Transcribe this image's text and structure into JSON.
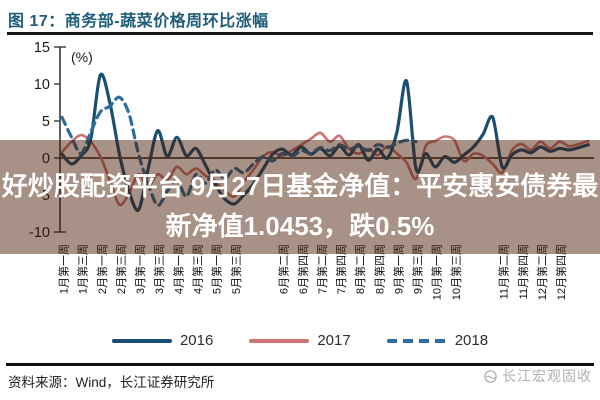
{
  "title": "图 17：商务部-蔬菜价格周环比涨幅",
  "overlay_banner": {
    "line1": "好炒股配资平台 9月27日基金净值：平安惠安债券最",
    "line2": "新净值1.0453，跌0.5%"
  },
  "footer": {
    "source": "资料来源：Wind，长江证券研究所",
    "watermark": "长江宏观固收"
  },
  "colors": {
    "title": "#1f5c78",
    "banner_tint": "rgba(70,23,0,0.47)",
    "banner_text": "#ffffff",
    "axis": "#3a3a3a",
    "zero_line": "#4a3c30",
    "tick_text": "#1a1a1a",
    "watermark": "#b3b0ad"
  },
  "chart_data": {
    "type": "line",
    "title": "商务部-蔬菜价格周环比涨幅",
    "unit_label": "(%)",
    "ylabel": "%",
    "ylim": [
      -10,
      15
    ],
    "yticks": [
      15,
      10,
      5,
      0,
      -5,
      -10
    ],
    "grid": false,
    "legend_position": "bottom",
    "legend": [
      "2016",
      "2017",
      "2018"
    ],
    "x_axis": {
      "total_weeks": 56,
      "ticks": [
        {
          "label": "1月第一周",
          "week": 1
        },
        {
          "label": "1月第三周",
          "week": 3
        },
        {
          "label": "2月第一周",
          "week": 5
        },
        {
          "label": "2月第三周",
          "week": 7
        },
        {
          "label": "3月第一周",
          "week": 9
        },
        {
          "label": "3月第三周",
          "week": 11
        },
        {
          "label": "4月第一周",
          "week": 13
        },
        {
          "label": "4月第三周",
          "week": 15
        },
        {
          "label": "5月第一周",
          "week": 17
        },
        {
          "label": "5月第三周",
          "week": 19
        },
        {
          "label": "6月第二周",
          "week": 24
        },
        {
          "label": "6月第四周",
          "week": 26
        },
        {
          "label": "7月第二周",
          "week": 28
        },
        {
          "label": "7月第四周",
          "week": 30
        },
        {
          "label": "8月第二周",
          "week": 32
        },
        {
          "label": "8月第四周",
          "week": 34
        },
        {
          "label": "9月第一周",
          "week": 36
        },
        {
          "label": "9月第三周",
          "week": 38
        },
        {
          "label": "10月第一周",
          "week": 40
        },
        {
          "label": "10月第三周",
          "week": 42
        },
        {
          "label": "11月第二周",
          "week": 47
        },
        {
          "label": "11月第四周",
          "week": 49
        },
        {
          "label": "12月第二周",
          "week": 51
        },
        {
          "label": "12月第四周",
          "week": 53
        }
      ]
    },
    "series": [
      {
        "name": "2016",
        "color": "#1b4f72",
        "style": "solid",
        "start_week": 1,
        "values": [
          0.5,
          -0.8,
          0.3,
          2.5,
          11.2,
          7.5,
          0.5,
          -4.5,
          -7.0,
          -1.5,
          3.7,
          0.2,
          2.8,
          0.3,
          1.3,
          -1.0,
          -3.5,
          -5.5,
          -6.2,
          -5.0,
          -3.5,
          -1.5,
          0.5,
          1.2,
          0.4,
          1.5,
          0.5,
          1.3,
          0.3,
          1.6,
          0.4,
          1.8,
          -0.3,
          1.2,
          0.0,
          3.5,
          10.4,
          -1.5,
          0.6,
          -1.2,
          0.2,
          -0.6,
          0.4,
          1.5,
          3.2,
          5.5,
          -1.2,
          0.4,
          1.1,
          0.7,
          1.5,
          0.9,
          1.3,
          1.1,
          1.4,
          1.8
        ]
      },
      {
        "name": "2017",
        "color": "#cd7370",
        "style": "solid",
        "start_week": 1,
        "values": [
          0.8,
          2.2,
          3.1,
          2.2,
          0.2,
          -3.0,
          -6.3,
          -4.8,
          -2.2,
          -3.8,
          -2.2,
          -3.0,
          -1.2,
          -2.2,
          -1.4,
          -2.4,
          -3.2,
          -4.4,
          -5.2,
          -3.2,
          -1.6,
          0.2,
          0.8,
          0.3,
          1.0,
          1.8,
          2.6,
          3.4,
          2.2,
          3.0,
          1.2,
          0.6,
          1.2,
          0.4,
          1.6,
          0.6,
          -0.6,
          -2.8,
          1.6,
          2.3,
          2.9,
          2.4,
          -0.4,
          0.6,
          0.3,
          -0.8,
          -2.0,
          1.0,
          1.9,
          1.1,
          2.2,
          1.3,
          2.2,
          1.6,
          1.9,
          2.3
        ]
      },
      {
        "name": "2018",
        "color": "#2e6e9e",
        "style": "dashed",
        "start_week": 1,
        "values": [
          5.5,
          2.8,
          0.6,
          3.5,
          6.2,
          7.0,
          8.2,
          6.0,
          0.5,
          -3.5,
          -6.4,
          -4.5,
          -3.0,
          -5.2,
          -2.2,
          -3.4,
          -1.6,
          -2.8,
          -1.4,
          -2.0,
          -0.8,
          0.2,
          -0.4,
          0.6,
          0.2,
          1.0,
          0.6,
          1.4,
          1.0,
          1.8,
          1.2,
          1.6,
          1.0,
          1.8,
          1.4,
          2.0,
          2.4,
          2.2
        ]
      }
    ]
  }
}
